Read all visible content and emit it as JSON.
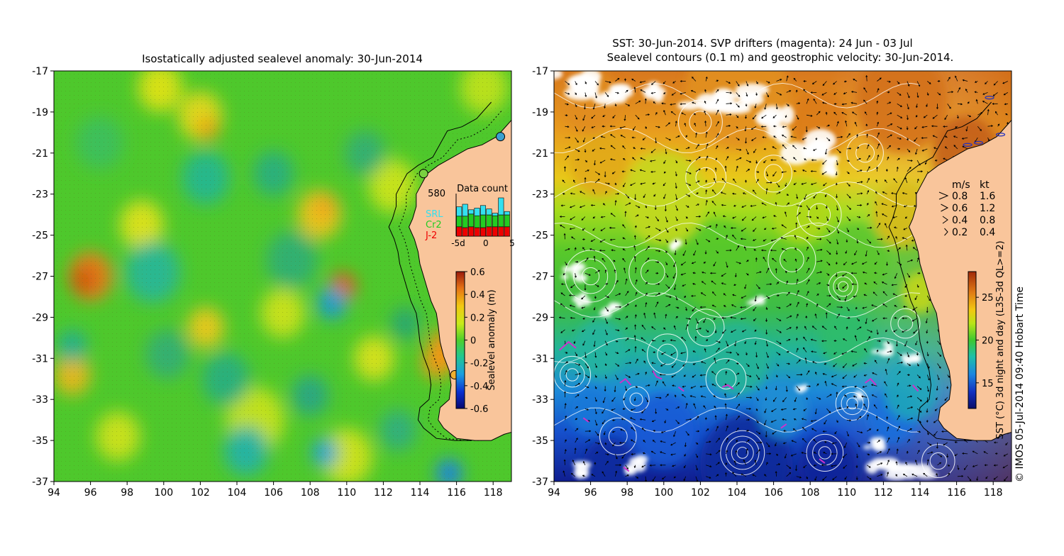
{
  "left_panel": {
    "title": "Isostatically adjusted sealevel anomaly: 30-Jun-2014",
    "x_ticks": [
      "94",
      "96",
      "98",
      "100",
      "102",
      "104",
      "106",
      "108",
      "110",
      "112",
      "114",
      "116",
      "118"
    ],
    "y_ticks": [
      "-17",
      "-19",
      "-21",
      "-23",
      "-25",
      "-27",
      "-29",
      "-31",
      "-33",
      "-35",
      "-37"
    ],
    "x_range": [
      94,
      119
    ],
    "y_range": [
      -37,
      -17
    ],
    "colorbar": {
      "label": "Sealevel anomaly (m)",
      "ticks": [
        "0.6",
        "0.4",
        "0.2",
        "0",
        "-0.2",
        "-0.4",
        "-0.6"
      ],
      "range": [
        -0.6,
        0.6
      ]
    },
    "data_count": {
      "title": "Data count",
      "max_label": "580",
      "x_ticks": [
        "-5d",
        "0",
        "5"
      ],
      "legend": [
        {
          "name": "SRL",
          "color": "#33e0f0"
        },
        {
          "name": "Cr2",
          "color": "#22cc22"
        },
        {
          "name": "J-2",
          "color": "#ee0000"
        }
      ],
      "bars": [
        {
          "day": -4,
          "SRL": 0.22,
          "Cr2": 0.25,
          "J2": 0.22
        },
        {
          "day": -3,
          "SRL": 0.28,
          "Cr2": 0.27,
          "J2": 0.2
        },
        {
          "day": -2,
          "SRL": 0.1,
          "Cr2": 0.3,
          "J2": 0.22
        },
        {
          "day": -1,
          "SRL": 0.18,
          "Cr2": 0.28,
          "J2": 0.2
        },
        {
          "day": 0,
          "SRL": 0.22,
          "Cr2": 0.3,
          "J2": 0.2
        },
        {
          "day": 1,
          "SRL": 0.14,
          "Cr2": 0.28,
          "J2": 0.22
        },
        {
          "day": 2,
          "SRL": 0.06,
          "Cr2": 0.26,
          "J2": 0.22
        },
        {
          "day": 3,
          "SRL": 0.4,
          "Cr2": 0.28,
          "J2": 0.22
        },
        {
          "day": 4,
          "SRL": 0.08,
          "Cr2": 0.28,
          "J2": 0.22
        }
      ]
    }
  },
  "right_panel": {
    "title_line1": "SST: 30-Jun-2014. SVP drifters (magenta): 24 Jun - 03 Jul",
    "title_line2": "Sealevel contours (0.1 m) and geostrophic velocity: 30-Jun-2014.",
    "x_ticks": [
      "94",
      "96",
      "98",
      "100",
      "102",
      "104",
      "106",
      "108",
      "110",
      "112",
      "114",
      "116",
      "118"
    ],
    "y_ticks": [
      "-17",
      "-19",
      "-21",
      "-23",
      "-25",
      "-27",
      "-29",
      "-31",
      "-33",
      "-35",
      "-37"
    ],
    "colorbar": {
      "label": "SST (°C) 3d night and day (L3S-3d QL>=2)",
      "ticks": [
        "25",
        "20",
        "15"
      ],
      "range": [
        12,
        28
      ]
    },
    "velocity_legend": {
      "header_ms": "m/s",
      "header_kt": "kt",
      "rows": [
        {
          "ms": "0.8",
          "kt": "1.6"
        },
        {
          "ms": "0.6",
          "kt": "1.2"
        },
        {
          "ms": "0.4",
          "kt": "0.8"
        },
        {
          "ms": "0.2",
          "kt": "0.4"
        }
      ]
    }
  },
  "credit": "© IMOS 05-Jul-2014 09:40 Hobart Time",
  "colors": {
    "land": "#f9c59b",
    "coast": "#000000",
    "cloud": "#ffffff",
    "contour": "#ffffff",
    "drifter": "#cc33cc"
  }
}
